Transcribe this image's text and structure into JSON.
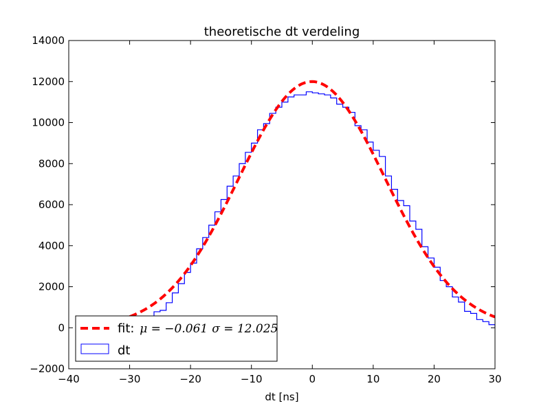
{
  "chart_data": {
    "type": "histogram",
    "title": "theoretische dt verdeling",
    "xlabel": "dt [ns]",
    "ylabel": "",
    "xlim": [
      -40,
      30
    ],
    "ylim": [
      -2000,
      14000
    ],
    "xticks": [
      -40,
      -30,
      -20,
      -10,
      0,
      10,
      20,
      30
    ],
    "xtick_labels": [
      "−40",
      "−30",
      "−20",
      "−10",
      "0",
      "10",
      "20",
      "30"
    ],
    "yticks": [
      -2000,
      0,
      2000,
      4000,
      6000,
      8000,
      10000,
      12000,
      14000
    ],
    "ytick_labels": [
      "−2000",
      "0",
      "2000",
      "4000",
      "6000",
      "8000",
      "10000",
      "12000",
      "14000"
    ],
    "grid": false,
    "legend_position": "lower-left",
    "series": [
      {
        "name": "dt",
        "kind": "step-histogram",
        "color": "#0000ff",
        "bin_edges": [
          -30,
          -29,
          -28,
          -27,
          -26,
          -25,
          -24,
          -23,
          -22,
          -21,
          -20,
          -19,
          -18,
          -17,
          -16,
          -15,
          -14,
          -13,
          -12,
          -11,
          -10,
          -9,
          -8,
          -7,
          -6,
          -5,
          -4,
          -3,
          -2,
          -1,
          0,
          1,
          2,
          3,
          4,
          5,
          6,
          7,
          8,
          9,
          10,
          11,
          12,
          13,
          14,
          15,
          16,
          17,
          18,
          19,
          20,
          21,
          22,
          23,
          24,
          25,
          26,
          27,
          28,
          29,
          30
        ],
        "counts": [
          200,
          280,
          370,
          550,
          780,
          850,
          1220,
          1700,
          2150,
          2700,
          3150,
          3850,
          4400,
          5000,
          5650,
          6250,
          6900,
          7400,
          8000,
          8550,
          9000,
          9650,
          9950,
          10450,
          10750,
          11000,
          11250,
          11350,
          11350,
          11500,
          11450,
          11400,
          11350,
          11200,
          10900,
          10750,
          10500,
          9850,
          9650,
          9050,
          8650,
          8350,
          7400,
          6750,
          6200,
          5950,
          5200,
          4800,
          3950,
          3400,
          2950,
          2300,
          2000,
          1500,
          1250,
          800,
          700,
          400,
          300,
          150
        ]
      },
      {
        "name": "fit: μ = −0.061  σ = 12.025",
        "kind": "gaussian-fit",
        "color": "#ff0000",
        "style": "dashed",
        "mu": -0.061,
        "sigma": 12.025,
        "peak": 12000,
        "x_range": [
          -30,
          30
        ]
      }
    ],
    "legend": {
      "fit_label": "fit: ",
      "fit_mu": "μ = −0.061",
      "fit_sigma": "σ = 12.025",
      "dt_label": "dt"
    }
  }
}
